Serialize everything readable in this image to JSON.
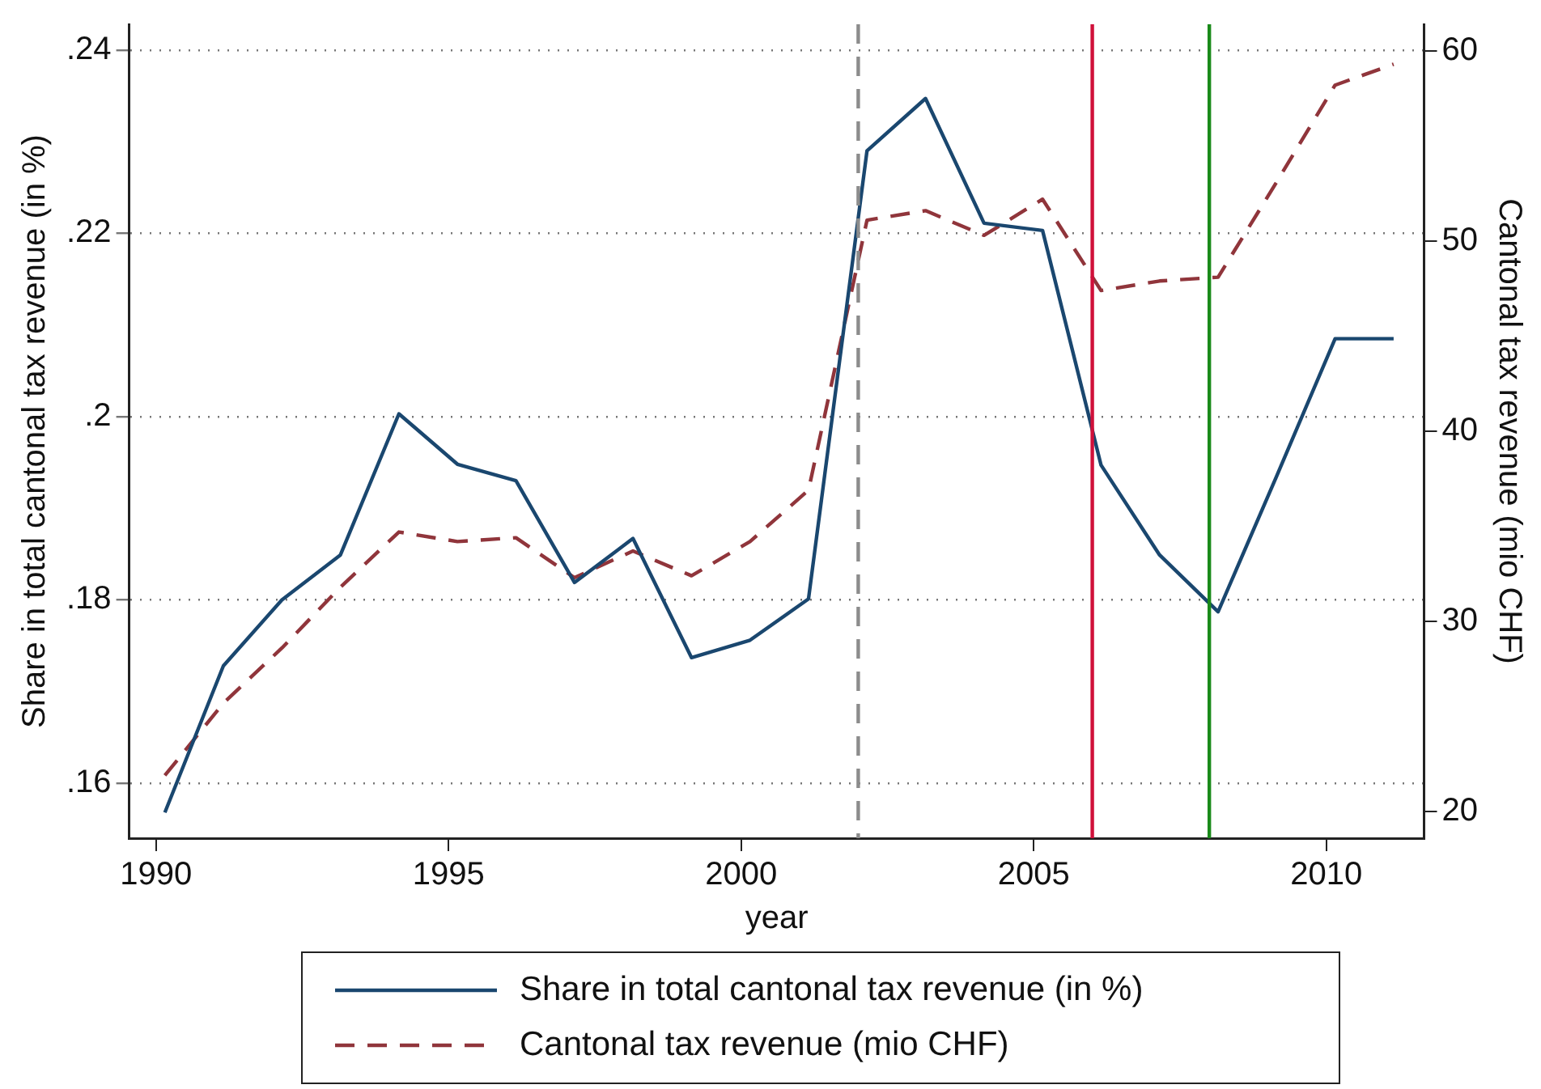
{
  "chart_data": {
    "type": "line",
    "xlabel": "year",
    "ylabel": "Share in total cantonal tax revenue (in %)",
    "y2label": "Cantonal tax revenue (mio CHF)",
    "xlim": [
      1989.54,
      2011.67
    ],
    "xticks": [
      1990,
      1995,
      2000,
      2005,
      2010
    ],
    "ylim": [
      0.154,
      0.2428
    ],
    "yticks": [
      {
        "value": 0.16,
        "label": ".16"
      },
      {
        "value": 0.18,
        "label": ".18"
      },
      {
        "value": 0.2,
        "label": ".2"
      },
      {
        "value": 0.22,
        "label": ".22"
      },
      {
        "value": 0.24,
        "label": ".24"
      }
    ],
    "y2lim": [
      18.6,
      61.4
    ],
    "y2ticks": [
      20,
      30,
      40,
      50,
      60
    ],
    "grid": "y",
    "legend": "bottom",
    "marker": "none",
    "series": [
      {
        "name": "Share in total cantonal tax revenue (in %)",
        "color": "#1a476f",
        "line_style": "solid",
        "x": [
          1990.15,
          1991.15,
          1992.15,
          1993.15,
          1994.15,
          1995.15,
          1996.15,
          1997.15,
          1998.15,
          1999.15,
          2000.15,
          2001.15,
          2002.15,
          2003.15,
          2004.15,
          2005.15,
          2006.15,
          2007.15,
          2008.15,
          2009.15,
          2010.15,
          2011.15
        ],
        "values": [
          0.1568,
          0.1728,
          0.18,
          0.1849,
          0.2003,
          0.1948,
          0.193,
          0.1819,
          0.1867,
          0.1737,
          0.1756,
          0.1801,
          0.229,
          0.2347,
          0.2211,
          0.2203,
          0.1947,
          0.1849,
          0.1787,
          0.1935,
          0.2085,
          0.2085
        ]
      },
      {
        "name": "Cantonal tax revenue (mio CHF)",
        "color": "#90353b",
        "line_style": "dashed",
        "axis": "y2",
        "x": [
          1990.15,
          1991.15,
          1992.15,
          1993.15,
          1994.15,
          1995.15,
          1996.15,
          1997.15,
          1998.15,
          1999.15,
          2000.15,
          2001.15,
          2002.15,
          2003.15,
          2004.15,
          2005.15,
          2006.15,
          2007.15,
          2008.15,
          2009.15,
          2010.15,
          2011.15
        ],
        "values": [
          21.9,
          25.7,
          28.6,
          31.8,
          34.7,
          34.2,
          34.4,
          32.3,
          33.7,
          32.4,
          34.2,
          36.9,
          51.1,
          51.6,
          50.3,
          52.2,
          47.4,
          47.9,
          48.1,
          53.1,
          58.2,
          59.3
        ]
      }
    ],
    "ref_lines": [
      {
        "axis": "x",
        "value": 2002,
        "color": "#8c8c8c",
        "line_style": "dashed"
      },
      {
        "axis": "x",
        "value": 2006,
        "color": "#d0103a",
        "line_style": "solid"
      },
      {
        "axis": "x",
        "value": 2008,
        "color": "#1a8a1a",
        "line_style": "solid"
      }
    ]
  }
}
